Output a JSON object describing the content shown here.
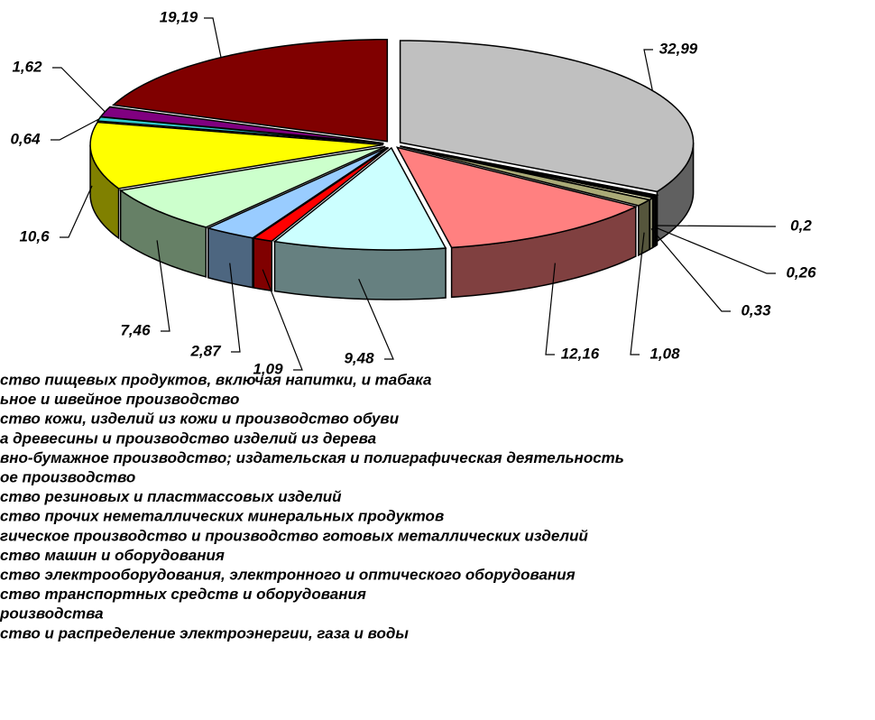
{
  "chart_data": {
    "type": "pie",
    "categories": [
      "ство пищевых продуктов, включая напитки, и табака",
      "ьное и швейное производство",
      "ство кожи, изделий из кожи и производство обуви",
      "а древесины и производство изделий из дерева",
      "вно-бумажное производство; издательская и полиграфическая деятельность",
      "ое производство",
      "ство резиновых и пластмассовых изделий",
      "ство прочих неметаллических минеральных продуктов",
      "гическое производство и производство готовых металлических изделий",
      "ство машин и оборудования",
      "ство электрооборудования, электронного и оптического оборудования",
      "ство транспортных средств и оборудования",
      "роизводства",
      "ство и распределение электроэнергии, газа и воды"
    ],
    "values": [
      32.99,
      0.2,
      0.26,
      0.33,
      1.08,
      12.16,
      9.48,
      1.09,
      2.87,
      7.46,
      10.6,
      0.64,
      1.62,
      19.19
    ],
    "value_labels": [
      "32,99",
      "0,2",
      "0,26",
      "0,33",
      "1,08",
      "12,16",
      "9,48",
      "1,09",
      "2,87",
      "7,46",
      "10,6",
      "0,64",
      "1,62",
      "19,19"
    ],
    "colors": [
      "#c0c0c0",
      "#000000",
      "#111111",
      "#ffffcc",
      "#aaaa77",
      "#ff8080",
      "#ccffff",
      "#ff0000",
      "#99ccff",
      "#ccffcc",
      "#ffff00",
      "#33cccc",
      "#800080",
      "#800000"
    ]
  }
}
